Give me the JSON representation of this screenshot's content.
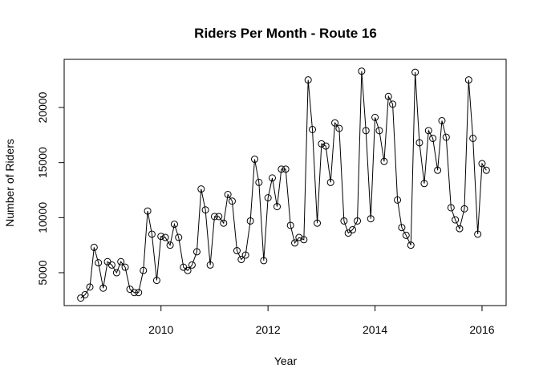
{
  "chart_data": {
    "type": "line",
    "title": "Riders Per Month - Route 16",
    "x_label": "Year",
    "y_label": "Number of Riders",
    "x": [
      2008.5,
      2008.58,
      2008.67,
      2008.75,
      2008.83,
      2008.92,
      2009.0,
      2009.08,
      2009.17,
      2009.25,
      2009.33,
      2009.42,
      2009.5,
      2009.58,
      2009.67,
      2009.75,
      2009.83,
      2009.92,
      2010.0,
      2010.08,
      2010.17,
      2010.25,
      2010.33,
      2010.42,
      2010.5,
      2010.58,
      2010.67,
      2010.75,
      2010.83,
      2010.92,
      2011.0,
      2011.08,
      2011.17,
      2011.25,
      2011.33,
      2011.42,
      2011.5,
      2011.58,
      2011.67,
      2011.75,
      2011.83,
      2011.92,
      2012.0,
      2012.08,
      2012.17,
      2012.25,
      2012.33,
      2012.42,
      2012.5,
      2012.58,
      2012.67,
      2012.75,
      2012.83,
      2012.92,
      2013.0,
      2013.08,
      2013.17,
      2013.25,
      2013.33,
      2013.42,
      2013.5,
      2013.58,
      2013.67,
      2013.75,
      2013.83,
      2013.92,
      2014.0,
      2014.08,
      2014.17,
      2014.25,
      2014.33,
      2014.42,
      2014.5,
      2014.58,
      2014.67,
      2014.75,
      2014.83,
      2014.92,
      2015.0,
      2015.08,
      2015.17,
      2015.25,
      2015.33,
      2015.42,
      2015.5,
      2015.58,
      2015.67,
      2015.75,
      2015.83,
      2015.92,
      2016.0,
      2016.08
    ],
    "values": [
      2700,
      3000,
      3700,
      7300,
      5900,
      3600,
      6000,
      5700,
      5000,
      6000,
      5500,
      3500,
      3200,
      3200,
      5200,
      10600,
      8500,
      4300,
      8300,
      8200,
      7500,
      9400,
      8200,
      5500,
      5200,
      5700,
      6900,
      12600,
      10700,
      5700,
      10100,
      10100,
      9500,
      12100,
      11500,
      7000,
      6200,
      6600,
      9700,
      15300,
      13200,
      6100,
      11800,
      13600,
      11000,
      14400,
      14400,
      9300,
      7700,
      8200,
      8000,
      22500,
      18000,
      9500,
      16700,
      16500,
      13200,
      18600,
      18100,
      9700,
      8600,
      8900,
      9700,
      23300,
      17900,
      9900,
      19100,
      17900,
      15100,
      21000,
      20300,
      11600,
      9100,
      8400,
      7500,
      23200,
      16800,
      13100,
      17900,
      17200,
      14300,
      18800,
      17300,
      10900,
      9800,
      9000,
      10800,
      22500,
      17200,
      8500,
      14900,
      14300
    ],
    "color": "#000000",
    "xlim": [
      2008.19,
      2016.45
    ],
    "ylim": [
      2015,
      24370
    ],
    "xticks": [
      2010,
      2012,
      2014,
      2016
    ],
    "yticks": [
      5000,
      10000,
      15000,
      20000
    ]
  }
}
